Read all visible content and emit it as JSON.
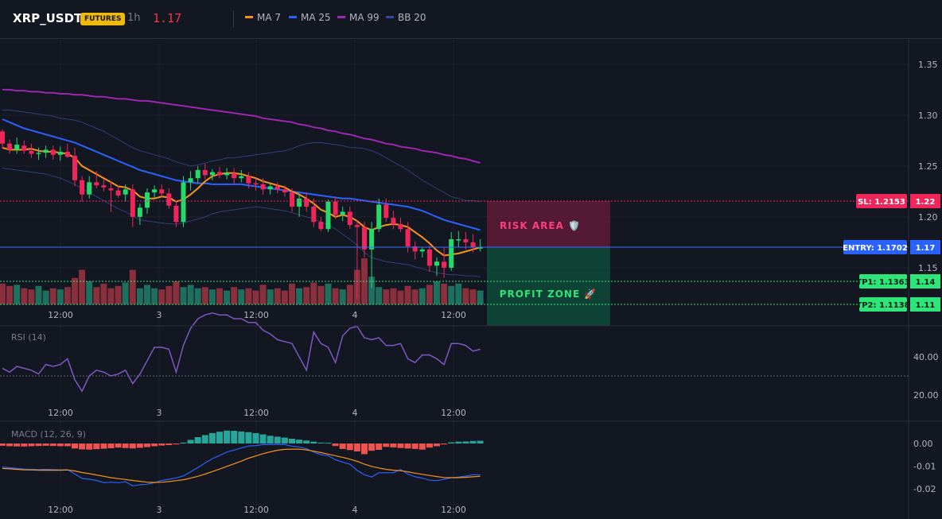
{
  "header": {
    "symbol": "XRP_USDT",
    "badge": "FUTURES",
    "timeframe": "1h",
    "last_price": "1.17",
    "legend": [
      {
        "label": "MA 7",
        "color": "#f7931a"
      },
      {
        "label": "MA 25",
        "color": "#2962ff"
      },
      {
        "label": "MA 99",
        "color": "#9c27b0"
      },
      {
        "label": "BB 20",
        "color": "#2f4a9e"
      }
    ]
  },
  "colors": {
    "up": "#26d96b",
    "down": "#f0265a",
    "vol_up": "#1f6f5f",
    "vol_down": "#8a2f3c"
  },
  "price_axis": {
    "ticks": [
      "1.35",
      "1.30",
      "1.25",
      "1.20",
      "1.15"
    ],
    "range": [
      1.1,
      1.38
    ]
  },
  "time_axis": {
    "labels": [
      "12:00",
      "3",
      "12:00",
      "4",
      "12:00"
    ]
  },
  "levels": {
    "sl": {
      "label": "SL: 1.2153",
      "value": "1.22",
      "price": 1.2153
    },
    "entry": {
      "label": "ENTRY: 1.1702",
      "value": "1.17",
      "price": 1.1702
    },
    "tp1": {
      "label": "TP1: 1.1363",
      "value": "1.14",
      "price": 1.1363
    },
    "tp2": {
      "label": "TP2: 1.1138",
      "value": "1.11",
      "price": 1.1138
    }
  },
  "zones": {
    "risk_label": "RISK AREA 🛡️",
    "profit_label": "PROFIT ZONE 🚀"
  },
  "rsi": {
    "title": "RSI (14)",
    "ticks": [
      "40.00",
      "20.00"
    ],
    "level": 30
  },
  "macd": {
    "title": "MACD (12, 26, 9)",
    "ticks": [
      "0.00",
      "-0.01",
      "-0.02"
    ]
  },
  "chart_data": {
    "type": "candlestick",
    "candles": [
      [
        1.284,
        1.286,
        1.268,
        1.272
      ],
      [
        1.272,
        1.276,
        1.262,
        1.266
      ],
      [
        1.266,
        1.278,
        1.262,
        1.271
      ],
      [
        1.27,
        1.275,
        1.262,
        1.265
      ],
      [
        1.265,
        1.272,
        1.258,
        1.262
      ],
      [
        1.262,
        1.268,
        1.256,
        1.263
      ],
      [
        1.263,
        1.27,
        1.258,
        1.266
      ],
      [
        1.266,
        1.27,
        1.256,
        1.261
      ],
      [
        1.261,
        1.269,
        1.255,
        1.264
      ],
      [
        1.264,
        1.272,
        1.258,
        1.259
      ],
      [
        1.26,
        1.268,
        1.23,
        1.236
      ],
      [
        1.236,
        1.24,
        1.215,
        1.222
      ],
      [
        1.222,
        1.24,
        1.218,
        1.234
      ],
      [
        1.234,
        1.245,
        1.228,
        1.231
      ],
      [
        1.231,
        1.237,
        1.225,
        1.229
      ],
      [
        1.228,
        1.235,
        1.205,
        1.226
      ],
      [
        1.226,
        1.231,
        1.219,
        1.221
      ],
      [
        1.222,
        1.232,
        1.215,
        1.227
      ],
      [
        1.227,
        1.232,
        1.19,
        1.2
      ],
      [
        1.2,
        1.213,
        1.192,
        1.209
      ],
      [
        1.209,
        1.228,
        1.203,
        1.224
      ],
      [
        1.224,
        1.231,
        1.218,
        1.227
      ],
      [
        1.227,
        1.232,
        1.22,
        1.223
      ],
      [
        1.223,
        1.228,
        1.208,
        1.211
      ],
      [
        1.211,
        1.216,
        1.19,
        1.195
      ],
      [
        1.195,
        1.24,
        1.19,
        1.234
      ],
      [
        1.234,
        1.245,
        1.226,
        1.238
      ],
      [
        1.238,
        1.25,
        1.233,
        1.246
      ],
      [
        1.246,
        1.252,
        1.237,
        1.241
      ],
      [
        1.241,
        1.247,
        1.236,
        1.244
      ],
      [
        1.244,
        1.249,
        1.238,
        1.241
      ],
      [
        1.241,
        1.248,
        1.237,
        1.243
      ],
      [
        1.243,
        1.248,
        1.232,
        1.238
      ],
      [
        1.238,
        1.246,
        1.234,
        1.24
      ],
      [
        1.24,
        1.244,
        1.228,
        1.233
      ],
      [
        1.233,
        1.238,
        1.226,
        1.232
      ],
      [
        1.232,
        1.238,
        1.222,
        1.227
      ],
      [
        1.227,
        1.232,
        1.222,
        1.23
      ],
      [
        1.23,
        1.234,
        1.223,
        1.227
      ],
      [
        1.227,
        1.231,
        1.22,
        1.224
      ],
      [
        1.224,
        1.228,
        1.205,
        1.21
      ],
      [
        1.21,
        1.222,
        1.2,
        1.218
      ],
      [
        1.218,
        1.224,
        1.205,
        1.21
      ],
      [
        1.21,
        1.218,
        1.19,
        1.195
      ],
      [
        1.195,
        1.2,
        1.186,
        1.188
      ],
      [
        1.188,
        1.217,
        1.185,
        1.215
      ],
      [
        1.215,
        1.22,
        1.198,
        1.202
      ],
      [
        1.202,
        1.21,
        1.196,
        1.205
      ],
      [
        1.205,
        1.21,
        1.188,
        1.192
      ],
      [
        1.192,
        1.197,
        1.12,
        1.19
      ],
      [
        1.19,
        1.195,
        1.16,
        1.168
      ],
      [
        1.168,
        1.195,
        1.13,
        1.188
      ],
      [
        1.188,
        1.218,
        1.185,
        1.212
      ],
      [
        1.212,
        1.218,
        1.195,
        1.199
      ],
      [
        1.199,
        1.206,
        1.188,
        1.193
      ],
      [
        1.193,
        1.199,
        1.185,
        1.188
      ],
      [
        1.188,
        1.195,
        1.165,
        1.171
      ],
      [
        1.171,
        1.176,
        1.158,
        1.166
      ],
      [
        1.166,
        1.17,
        1.16,
        1.168
      ],
      [
        1.168,
        1.172,
        1.146,
        1.152
      ],
      [
        1.152,
        1.16,
        1.142,
        1.156
      ],
      [
        1.156,
        1.17,
        1.14,
        1.15
      ],
      [
        1.15,
        1.185,
        1.147,
        1.178
      ],
      [
        1.178,
        1.186,
        1.17,
        1.178
      ],
      [
        1.178,
        1.185,
        1.168,
        1.175
      ],
      [
        1.175,
        1.183,
        1.165,
        1.17
      ],
      [
        1.17,
        1.178,
        1.166,
        1.17
      ]
    ],
    "volume": [
      18,
      16,
      17,
      14,
      13,
      16,
      12,
      14,
      13,
      15,
      23,
      30,
      20,
      15,
      18,
      14,
      16,
      19,
      30,
      14,
      17,
      14,
      13,
      16,
      20,
      15,
      17,
      14,
      15,
      13,
      14,
      12,
      15,
      13,
      14,
      12,
      17,
      13,
      14,
      12,
      18,
      14,
      15,
      19,
      16,
      18,
      14,
      13,
      17,
      30,
      40,
      24,
      15,
      13,
      14,
      12,
      16,
      13,
      14,
      17,
      20,
      18,
      16,
      18,
      14,
      13,
      12
    ],
    "series": [
      {
        "name": "MA 7",
        "values": [
          1.268,
          1.266,
          1.266,
          1.266,
          1.267,
          1.265,
          1.264,
          1.264,
          1.263,
          1.262,
          1.258,
          1.25,
          1.246,
          1.242,
          1.238,
          1.234,
          1.23,
          1.229,
          1.226,
          1.22,
          1.218,
          1.218,
          1.22,
          1.219,
          1.215,
          1.217,
          1.222,
          1.228,
          1.235,
          1.24,
          1.242,
          1.243,
          1.243,
          1.242,
          1.24,
          1.238,
          1.235,
          1.233,
          1.231,
          1.229,
          1.225,
          1.222,
          1.218,
          1.213,
          1.207,
          1.204,
          1.2,
          1.202,
          1.2,
          1.196,
          1.19,
          1.187,
          1.19,
          1.192,
          1.193,
          1.192,
          1.19,
          1.185,
          1.18,
          1.174,
          1.167,
          1.162,
          1.163,
          1.164,
          1.166,
          1.168,
          1.17
        ]
      },
      {
        "name": "MA 25",
        "values": [
          1.296,
          1.293,
          1.29,
          1.287,
          1.285,
          1.283,
          1.281,
          1.279,
          1.277,
          1.275,
          1.273,
          1.27,
          1.267,
          1.264,
          1.261,
          1.258,
          1.255,
          1.252,
          1.249,
          1.246,
          1.244,
          1.242,
          1.24,
          1.238,
          1.236,
          1.235,
          1.234,
          1.233,
          1.233,
          1.232,
          1.232,
          1.232,
          1.232,
          1.232,
          1.231,
          1.23,
          1.229,
          1.228,
          1.227,
          1.226,
          1.225,
          1.224,
          1.223,
          1.222,
          1.221,
          1.22,
          1.219,
          1.218,
          1.218,
          1.217,
          1.216,
          1.215,
          1.214,
          1.213,
          1.212,
          1.211,
          1.21,
          1.208,
          1.206,
          1.203,
          1.2,
          1.197,
          1.195,
          1.193,
          1.191,
          1.189,
          1.187
        ]
      },
      {
        "name": "MA 99",
        "values": [
          1.325,
          1.325,
          1.324,
          1.324,
          1.323,
          1.323,
          1.322,
          1.322,
          1.321,
          1.321,
          1.32,
          1.32,
          1.319,
          1.318,
          1.318,
          1.317,
          1.316,
          1.316,
          1.315,
          1.314,
          1.314,
          1.313,
          1.312,
          1.311,
          1.31,
          1.309,
          1.308,
          1.307,
          1.306,
          1.305,
          1.304,
          1.303,
          1.302,
          1.301,
          1.3,
          1.299,
          1.297,
          1.296,
          1.295,
          1.294,
          1.293,
          1.291,
          1.29,
          1.288,
          1.287,
          1.285,
          1.284,
          1.282,
          1.281,
          1.279,
          1.277,
          1.276,
          1.274,
          1.272,
          1.271,
          1.269,
          1.268,
          1.267,
          1.265,
          1.264,
          1.263,
          1.261,
          1.26,
          1.258,
          1.257,
          1.255,
          1.253
        ]
      },
      {
        "name": "BB 20 upper",
        "values": [
          1.305,
          1.305,
          1.304,
          1.303,
          1.302,
          1.301,
          1.3,
          1.299,
          1.297,
          1.296,
          1.295,
          1.293,
          1.29,
          1.287,
          1.284,
          1.28,
          1.276,
          1.272,
          1.268,
          1.265,
          1.263,
          1.261,
          1.259,
          1.257,
          1.254,
          1.252,
          1.25,
          1.251,
          1.253,
          1.255,
          1.256,
          1.258,
          1.258,
          1.259,
          1.26,
          1.261,
          1.262,
          1.263,
          1.264,
          1.265,
          1.267,
          1.27,
          1.272,
          1.273,
          1.273,
          1.272,
          1.271,
          1.27,
          1.268,
          1.268,
          1.267,
          1.265,
          1.262,
          1.258,
          1.254,
          1.25,
          1.246,
          1.241,
          1.236,
          1.232,
          1.228,
          1.224,
          1.22,
          1.218,
          1.216,
          1.216,
          1.215
        ]
      },
      {
        "name": "BB 20 lower",
        "values": [
          1.248,
          1.247,
          1.246,
          1.245,
          1.244,
          1.243,
          1.242,
          1.24,
          1.238,
          1.235,
          1.232,
          1.228,
          1.224,
          1.22,
          1.216,
          1.212,
          1.208,
          1.205,
          1.201,
          1.197,
          1.196,
          1.195,
          1.194,
          1.193,
          1.193,
          1.194,
          1.196,
          1.198,
          1.2,
          1.203,
          1.205,
          1.206,
          1.207,
          1.208,
          1.209,
          1.21,
          1.209,
          1.208,
          1.207,
          1.206,
          1.204,
          1.202,
          1.2,
          1.198,
          1.195,
          1.192,
          1.188,
          1.183,
          1.178,
          1.172,
          1.165,
          1.16,
          1.158,
          1.156,
          1.155,
          1.154,
          1.153,
          1.151,
          1.149,
          1.147,
          1.145,
          1.144,
          1.143,
          1.143,
          1.142,
          1.142,
          1.141
        ]
      },
      {
        "name": "RSI (14)",
        "values": [
          34,
          32,
          35,
          34,
          33,
          31,
          36,
          35,
          36,
          39,
          28,
          22,
          30,
          33,
          32,
          30,
          31,
          33,
          26,
          31,
          38,
          45,
          45,
          44,
          32,
          46,
          55,
          60,
          62,
          63,
          62,
          62,
          60,
          60,
          58,
          58,
          54,
          52,
          49,
          48,
          47,
          40,
          33,
          53,
          47,
          45,
          37,
          51,
          55,
          56,
          50,
          49,
          50,
          46,
          46,
          47,
          39,
          37,
          41,
          41,
          39,
          36,
          47,
          47,
          46,
          43,
          44
        ]
      },
      {
        "name": "MACD",
        "values": [
          -0.0104,
          -0.0107,
          -0.011,
          -0.0113,
          -0.0114,
          -0.0115,
          -0.0114,
          -0.0115,
          -0.0116,
          -0.0115,
          -0.0134,
          -0.0154,
          -0.0158,
          -0.0163,
          -0.0173,
          -0.0171,
          -0.0173,
          -0.0169,
          -0.0187,
          -0.0182,
          -0.018,
          -0.0173,
          -0.0163,
          -0.0158,
          -0.0152,
          -0.0143,
          -0.0125,
          -0.0106,
          -0.0086,
          -0.0067,
          -0.0053,
          -0.0038,
          -0.0029,
          -0.002,
          -0.0011,
          -0.0009,
          -0.0005,
          -0.0005,
          -0.0004,
          -0.0005,
          -0.0012,
          -0.0015,
          -0.0023,
          -0.0038,
          -0.0049,
          -0.0054,
          -0.0072,
          -0.0082,
          -0.0092,
          -0.0119,
          -0.0138,
          -0.0148,
          -0.0129,
          -0.0129,
          -0.0129,
          -0.0115,
          -0.0135,
          -0.0147,
          -0.0153,
          -0.0162,
          -0.0164,
          -0.0158,
          -0.0151,
          -0.0148,
          -0.0144,
          -0.0138,
          -0.0139
        ]
      },
      {
        "name": "Signal",
        "values": [
          -0.011,
          -0.0112,
          -0.0114,
          -0.0116,
          -0.0117,
          -0.0118,
          -0.0118,
          -0.0118,
          -0.0118,
          -0.0117,
          -0.0121,
          -0.0128,
          -0.0133,
          -0.0139,
          -0.0145,
          -0.0151,
          -0.0155,
          -0.0159,
          -0.0163,
          -0.0167,
          -0.0171,
          -0.0172,
          -0.0171,
          -0.0168,
          -0.0164,
          -0.016,
          -0.0153,
          -0.0145,
          -0.0135,
          -0.0124,
          -0.0113,
          -0.0101,
          -0.009,
          -0.0078,
          -0.0065,
          -0.0055,
          -0.0045,
          -0.0037,
          -0.003,
          -0.0026,
          -0.0025,
          -0.0025,
          -0.0028,
          -0.0034,
          -0.004,
          -0.0047,
          -0.0054,
          -0.0061,
          -0.0069,
          -0.0079,
          -0.0091,
          -0.0101,
          -0.0108,
          -0.0114,
          -0.0118,
          -0.012,
          -0.0125,
          -0.0131,
          -0.0136,
          -0.0141,
          -0.0146,
          -0.015,
          -0.0151,
          -0.0151,
          -0.0149,
          -0.0147,
          -0.0145
        ]
      },
      {
        "name": "Histogram",
        "values": [
          -0.001,
          -0.0012,
          -0.0013,
          -0.0013,
          -0.0012,
          -0.0011,
          -0.001,
          -0.0011,
          -0.0012,
          -0.0012,
          -0.0022,
          -0.0026,
          -0.0027,
          -0.0025,
          -0.0023,
          -0.0021,
          -0.0018,
          -0.002,
          -0.0022,
          -0.0019,
          -0.0016,
          -0.0012,
          -0.0009,
          -0.0007,
          -0.0004,
          0.0004,
          0.0016,
          0.0028,
          0.0037,
          0.0046,
          0.0052,
          0.0057,
          0.0056,
          0.0053,
          0.005,
          0.0046,
          0.004,
          0.0034,
          0.003,
          0.0026,
          0.0021,
          0.0017,
          0.0013,
          0.0008,
          0.0004,
          0.0003,
          -0.0011,
          -0.0024,
          -0.0029,
          -0.0035,
          -0.0047,
          -0.0032,
          -0.0028,
          -0.0015,
          -0.0017,
          -0.002,
          -0.0022,
          -0.0024,
          -0.0027,
          -0.0018,
          -0.0012,
          -0.0004,
          0.0005,
          0.0008,
          0.0009,
          0.0011,
          0.0012
        ]
      }
    ],
    "ylim": [
      1.1,
      1.38
    ]
  }
}
